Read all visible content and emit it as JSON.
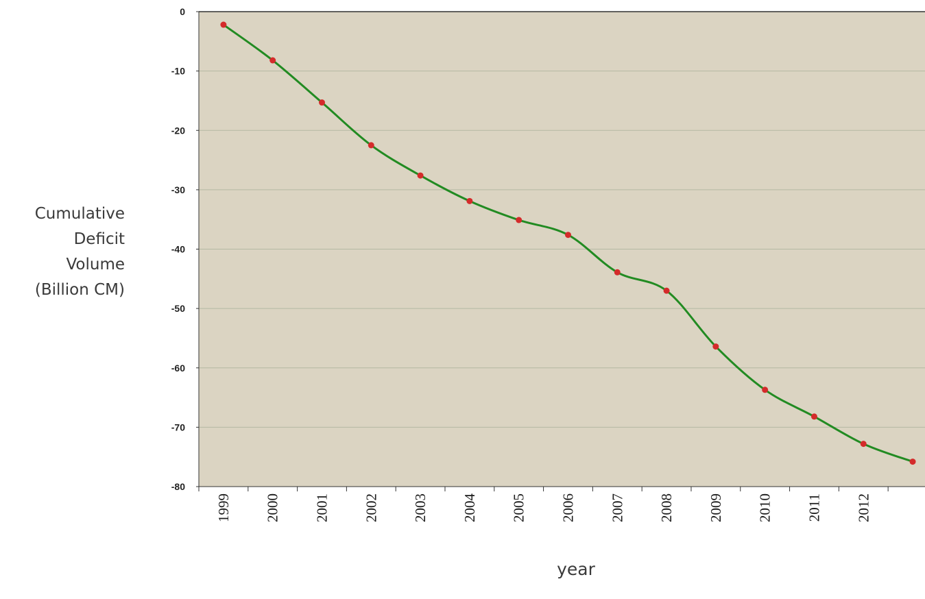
{
  "chart_data": {
    "type": "line",
    "xlabel": "year",
    "ylabel_lines": [
      "Cumulative",
      "Deficit",
      "Volume",
      "(Billion CM)"
    ],
    "categories": [
      "1999",
      "2000",
      "2001",
      "2002",
      "2003",
      "2004",
      "2005",
      "2006",
      "2007",
      "2008",
      "2009",
      "2010",
      "2011",
      "2012"
    ],
    "x": [
      1998.5,
      1999.5,
      2000.5,
      2001.5,
      2002.5,
      2003.5,
      2004.5,
      2005.5,
      2006.5,
      2007.5,
      2008.5,
      2009.5,
      2010.5,
      2011.5,
      2012.5
    ],
    "series": [
      {
        "values": [
          -2.2,
          -8.2,
          -15.3,
          -22.5,
          -27.6,
          -31.9,
          -35.1,
          -37.6,
          -43.9,
          -47.0,
          -56.4,
          -63.7,
          -68.2,
          -72.8,
          -75.8
        ]
      }
    ],
    "yticks": [
      0,
      -10,
      -20,
      -30,
      -40,
      -50,
      -60,
      -70,
      -80
    ],
    "ylim": [
      -80,
      0
    ],
    "xlim": [
      1998.0,
      2012.75
    ],
    "grid": true,
    "colors": {
      "plot_background": "#dbd4c2",
      "line": "#228b22",
      "marker": "#d42b2b",
      "gridline": "#b4b8a2",
      "axis": "#333333"
    }
  }
}
